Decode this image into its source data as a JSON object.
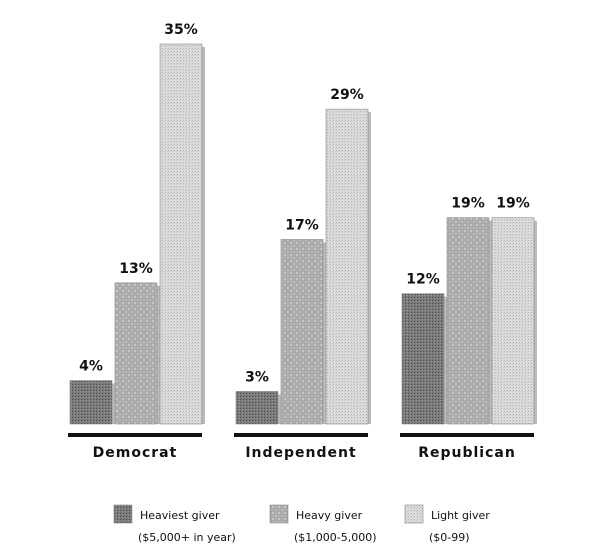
{
  "chart_data": {
    "type": "bar",
    "categories": [
      "Democrat",
      "Independent",
      "Republican"
    ],
    "series": [
      {
        "name": "Heaviest giver",
        "range": "($5,000+ in year)",
        "color": "#7a7a7a",
        "values": [
          4,
          3,
          12
        ],
        "value_labels": [
          "4%",
          "3%",
          "12%"
        ]
      },
      {
        "name": "Heavy giver",
        "range": "($1,000-5,000)",
        "color": "#c4c4c4",
        "values": [
          13,
          17,
          19
        ],
        "value_labels": [
          "13%",
          "17%",
          "19%"
        ]
      },
      {
        "name": "Light giver",
        "range": "($0-99)",
        "color": "#dcdcdc",
        "values": [
          35,
          29,
          19
        ],
        "value_labels": [
          "35%",
          "29%",
          "19%"
        ]
      }
    ]
  }
}
